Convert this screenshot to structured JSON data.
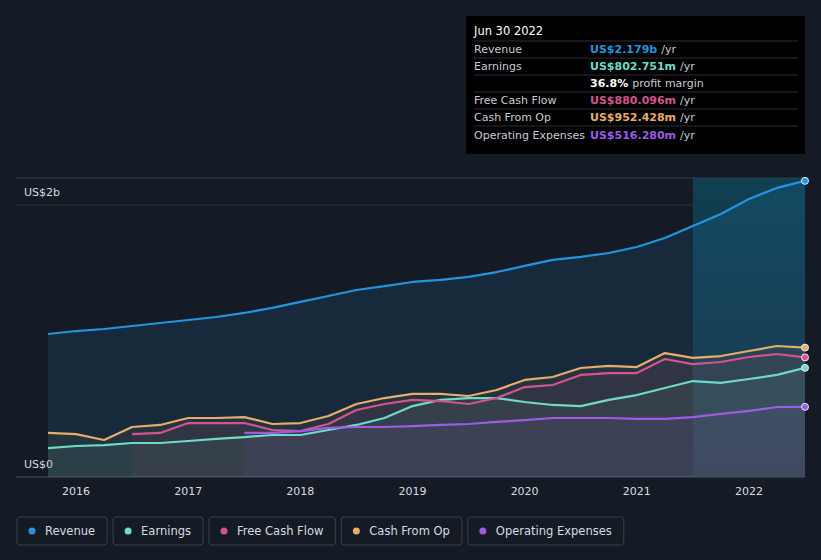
{
  "chart_data": {
    "type": "line",
    "x": [
      2015.75,
      2016,
      2016.25,
      2016.5,
      2016.75,
      2017,
      2017.25,
      2017.5,
      2017.75,
      2018,
      2018.25,
      2018.5,
      2018.75,
      2019,
      2019.25,
      2019.5,
      2019.75,
      2020,
      2020.25,
      2020.5,
      2020.75,
      2021,
      2021.25,
      2021.5,
      2021.75,
      2022,
      2022.25,
      2022.5
    ],
    "xlim": [
      2015.75,
      2022.5
    ],
    "xticks": [
      2016,
      2017,
      2018,
      2019,
      2020,
      2021,
      2022
    ],
    "ylim": [
      0,
      2.2
    ],
    "yticks": [
      {
        "value": 0,
        "label": "US$0"
      },
      {
        "value": 2,
        "label": "US$2b"
      }
    ],
    "grid": true,
    "legend": "bottom",
    "shaded_range": [
      2021.5,
      2022.5
    ],
    "series": [
      {
        "name": "Revenue",
        "color": "#2394df",
        "values": [
          1.052,
          1.074,
          1.089,
          1.111,
          1.133,
          1.155,
          1.177,
          1.207,
          1.244,
          1.288,
          1.332,
          1.376,
          1.405,
          1.435,
          1.45,
          1.472,
          1.508,
          1.553,
          1.597,
          1.619,
          1.648,
          1.692,
          1.759,
          1.847,
          1.935,
          2.046,
          2.127,
          2.179
        ]
      },
      {
        "name": "Earnings",
        "color": "#6cdcc6",
        "values": [
          0.213,
          0.228,
          0.235,
          0.25,
          0.25,
          0.265,
          0.28,
          0.294,
          0.309,
          0.309,
          0.346,
          0.383,
          0.434,
          0.522,
          0.567,
          0.581,
          0.581,
          0.552,
          0.53,
          0.522,
          0.567,
          0.603,
          0.655,
          0.706,
          0.692,
          0.721,
          0.751,
          0.803
        ]
      },
      {
        "name": "Free Cash Flow",
        "color": "#d4548f",
        "values": [
          null,
          null,
          null,
          0.316,
          0.324,
          0.397,
          0.397,
          0.397,
          0.346,
          0.338,
          0.39,
          0.493,
          0.537,
          0.567,
          0.559,
          0.537,
          0.581,
          0.662,
          0.677,
          0.751,
          0.765,
          0.765,
          0.868,
          0.831,
          0.846,
          0.883,
          0.905,
          0.88
        ]
      },
      {
        "name": "Cash From Op",
        "color": "#e6ae6a",
        "values": [
          0.324,
          0.316,
          0.272,
          0.368,
          0.383,
          0.434,
          0.434,
          0.441,
          0.39,
          0.397,
          0.449,
          0.537,
          0.581,
          0.611,
          0.611,
          0.596,
          0.64,
          0.714,
          0.736,
          0.802,
          0.817,
          0.809,
          0.912,
          0.876,
          0.89,
          0.927,
          0.964,
          0.952
        ]
      },
      {
        "name": "Operating Expenses",
        "color": "#9d5ce6",
        "values": [
          null,
          null,
          null,
          null,
          null,
          null,
          null,
          0.324,
          0.324,
          0.338,
          0.361,
          0.368,
          0.368,
          0.375,
          0.383,
          0.39,
          0.405,
          0.419,
          0.434,
          0.434,
          0.434,
          0.427,
          0.427,
          0.441,
          0.464,
          0.486,
          0.515,
          0.516
        ]
      }
    ],
    "tooltip": {
      "date": "Jun 30 2022",
      "values": [
        "US$2.179b",
        "US$802.751m",
        "US$880.096m",
        "US$952.428m",
        "US$516.280m"
      ],
      "unit": "/yr",
      "margin_value": "36.8%",
      "margin_text": "profit margin"
    }
  }
}
